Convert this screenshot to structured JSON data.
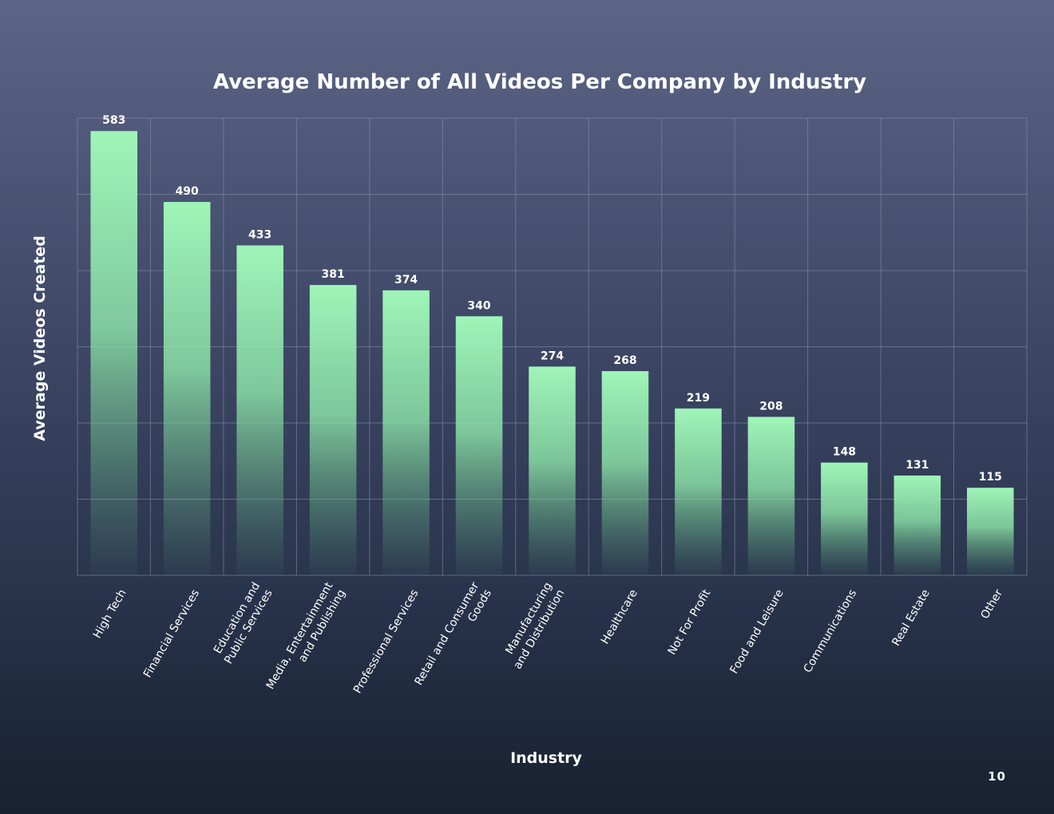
{
  "page_number": "10",
  "chart_data": {
    "type": "bar",
    "title": "Average Number of All Videos Per Company by Industry",
    "xlabel": "Industry",
    "ylabel": "Average Videos Created",
    "ylim": [
      0,
      600
    ],
    "grid": true,
    "categories": [
      [
        "High Tech"
      ],
      [
        "Financial Services"
      ],
      [
        "Education and",
        "Public Services"
      ],
      [
        "Media, Entertainment",
        "and Publishing"
      ],
      [
        "Professional Services"
      ],
      [
        "Retail and Consumer",
        "Goods"
      ],
      [
        "Manufacturing",
        "and Distribution"
      ],
      [
        "Healthcare"
      ],
      [
        "Not For Profit"
      ],
      [
        "Food and Leisure"
      ],
      [
        "Communications"
      ],
      [
        "Real Estate"
      ],
      [
        "Other"
      ]
    ],
    "values": [
      583,
      490,
      433,
      381,
      374,
      340,
      274,
      268,
      219,
      208,
      148,
      131,
      115
    ],
    "bar_color": "#9ff5b8"
  }
}
